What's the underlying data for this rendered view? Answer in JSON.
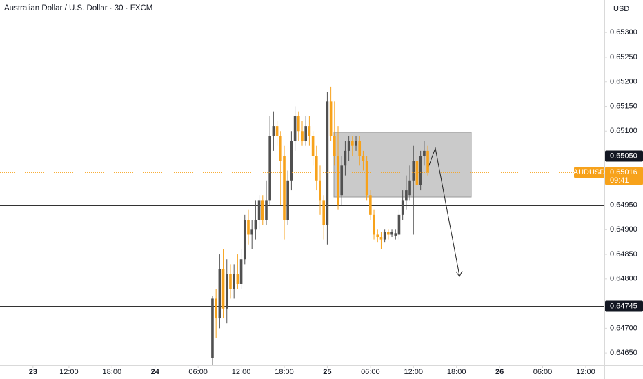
{
  "chart_data": {
    "type": "candlestick",
    "title": "Australian Dollar / U.S. Dollar · 30 · FXCM",
    "currency": "USD",
    "x": [
      32,
      32.5,
      33,
      33.5,
      34,
      34.5,
      35,
      35.5,
      36,
      36.5,
      37,
      37.5,
      38,
      38.5,
      39,
      39.5,
      40,
      40.5,
      41,
      41.5,
      42,
      42.5,
      43,
      43.5,
      44,
      44.5,
      45,
      45.5,
      46,
      46.5,
      47,
      47.5,
      48,
      48.5,
      49,
      49.5,
      50,
      50.5,
      51,
      51.5,
      52,
      52.5,
      53,
      53.5,
      54,
      54.5,
      55,
      55.5,
      56,
      56.5,
      57,
      57.5,
      58,
      58.5,
      59,
      59.5,
      60,
      60.5,
      61,
      61.5,
      62
    ],
    "open": [
      0.6464,
      0.6476,
      0.6472,
      0.6482,
      0.6474,
      0.6481,
      0.6478,
      0.6481,
      0.6479,
      0.6484,
      0.6492,
      0.6489,
      0.649,
      0.6492,
      0.6496,
      0.6492,
      0.6496,
      0.6509,
      0.6511,
      0.6509,
      0.6505,
      0.6492,
      0.65,
      0.6508,
      0.6513,
      0.651,
      0.6508,
      0.6511,
      0.6509,
      0.6505,
      0.65,
      0.6496,
      0.6491,
      0.6516,
      0.6509,
      0.6505,
      0.6497,
      0.6503,
      0.6506,
      0.6508,
      0.6507,
      0.6508,
      0.6505,
      0.6504,
      0.6497,
      0.6493,
      0.6489,
      0.64885,
      0.6488,
      0.64895,
      0.6489,
      0.64888,
      0.6489,
      0.6493,
      0.6496,
      0.6497,
      0.65,
      0.6504,
      0.6499,
      0.6505,
      0.6506
    ],
    "high": [
      0.64765,
      0.6478,
      0.6485,
      0.6486,
      0.6484,
      0.6483,
      0.6483,
      0.6485,
      0.6486,
      0.6493,
      0.6494,
      0.6492,
      0.6496,
      0.6497,
      0.6497,
      0.65,
      0.6513,
      0.6514,
      0.6512,
      0.651,
      0.6507,
      0.6502,
      0.651,
      0.6515,
      0.6514,
      0.6512,
      0.6513,
      0.6513,
      0.651,
      0.6507,
      0.6503,
      0.6497,
      0.6518,
      0.6519,
      0.6516,
      0.6511,
      0.6505,
      0.6508,
      0.6509,
      0.6509,
      0.6509,
      0.6509,
      0.6506,
      0.6505,
      0.6498,
      0.6494,
      0.649,
      0.64895,
      0.649,
      0.649,
      0.649,
      0.649,
      0.6494,
      0.6498,
      0.6501,
      0.6503,
      0.6507,
      0.6506,
      0.6506,
      0.6508,
      0.6507
    ],
    "low": [
      0.6462,
      0.6468,
      0.647,
      0.6472,
      0.6471,
      0.6476,
      0.6476,
      0.6478,
      0.6478,
      0.6483,
      0.6487,
      0.6486,
      0.6488,
      0.649,
      0.6491,
      0.6491,
      0.6495,
      0.6506,
      0.6507,
      0.6495,
      0.6488,
      0.6491,
      0.6498,
      0.6506,
      0.6508,
      0.6507,
      0.6507,
      0.6507,
      0.6503,
      0.6498,
      0.6493,
      0.6488,
      0.6487,
      0.6508,
      0.6503,
      0.6494,
      0.6495,
      0.6501,
      0.6504,
      0.6505,
      0.6506,
      0.6503,
      0.6502,
      0.6496,
      0.6492,
      0.6488,
      0.64875,
      0.6486,
      0.64875,
      0.6488,
      0.64885,
      0.6488,
      0.6488,
      0.6492,
      0.6494,
      0.6496,
      0.6489,
      0.6498,
      0.6498,
      0.6503,
      0.6501
    ],
    "close": [
      0.6476,
      0.6472,
      0.6482,
      0.6474,
      0.6481,
      0.6478,
      0.6481,
      0.6479,
      0.6484,
      0.6492,
      0.6489,
      0.649,
      0.6492,
      0.6496,
      0.6492,
      0.6496,
      0.6509,
      0.6511,
      0.6509,
      0.6504,
      0.6492,
      0.65,
      0.6508,
      0.6513,
      0.651,
      0.6508,
      0.6511,
      0.6509,
      0.6505,
      0.65,
      0.6496,
      0.6491,
      0.6516,
      0.6509,
      0.6505,
      0.6495,
      0.6503,
      0.6506,
      0.6508,
      0.6507,
      0.6508,
      0.6505,
      0.6504,
      0.6497,
      0.6493,
      0.6489,
      0.64885,
      0.6488,
      0.64895,
      0.6489,
      0.64895,
      0.64893,
      0.6493,
      0.6496,
      0.6498,
      0.65,
      0.6504,
      0.6499,
      0.6505,
      0.6506,
      0.65016
    ],
    "up_color": "#505050",
    "down_color": "#f7a21b",
    "xlim": [
      2.4,
      86.6
    ],
    "xticks": [
      {
        "value": 7,
        "label": "23"
      },
      {
        "value": 12,
        "label": "12:00"
      },
      {
        "value": 18,
        "label": "18:00"
      },
      {
        "value": 24,
        "label": "24"
      },
      {
        "value": 30,
        "label": "06:00"
      },
      {
        "value": 36,
        "label": "12:00"
      },
      {
        "value": 42,
        "label": "18:00"
      },
      {
        "value": 48,
        "label": "25"
      },
      {
        "value": 54,
        "label": "06:00"
      },
      {
        "value": 60,
        "label": "12:00"
      },
      {
        "value": 66,
        "label": "18:00"
      },
      {
        "value": 72,
        "label": "26"
      },
      {
        "value": 78,
        "label": "06:00"
      },
      {
        "value": 84,
        "label": "12:00"
      }
    ],
    "ylim": [
      0.64625,
      0.65366
    ],
    "yticks": [
      {
        "value": 0.653,
        "label": "0.65300"
      },
      {
        "value": 0.6525,
        "label": "0.65250"
      },
      {
        "value": 0.652,
        "label": "0.65200"
      },
      {
        "value": 0.6515,
        "label": "0.65150"
      },
      {
        "value": 0.651,
        "label": "0.65100"
      },
      {
        "value": 0.6495,
        "label": "0.64950"
      },
      {
        "value": 0.649,
        "label": "0.64900"
      },
      {
        "value": 0.6485,
        "label": "0.64850"
      },
      {
        "value": 0.648,
        "label": "0.64800"
      },
      {
        "value": 0.647,
        "label": "0.64700"
      },
      {
        "value": 0.6465,
        "label": "0.64650"
      }
    ],
    "hlines": [
      {
        "value": 0.6505,
        "label": "0.65050"
      },
      {
        "value": 0.6495
      },
      {
        "value": 0.64745,
        "label": "0.64745"
      }
    ],
    "last": {
      "symbol": "AUDUSD",
      "value": 0.65016,
      "countdown": "09:41",
      "color": "#f7a21b"
    }
  }
}
